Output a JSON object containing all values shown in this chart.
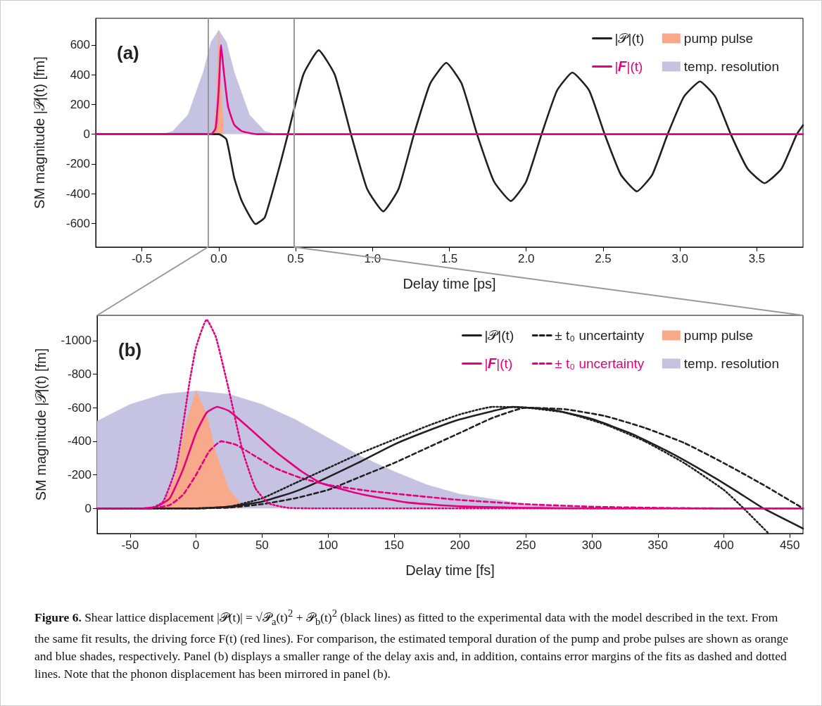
{
  "chart_data": [
    {
      "type": "line",
      "xlabel": "Delay time [ps]",
      "ylabel": "SM magnitude |𝒫|(t) [fm]",
      "xlim": [
        -0.8,
        3.8
      ],
      "ylim": [
        -760,
        780
      ],
      "xticks": [
        -0.5,
        {
          "value": 0,
          "label": "0.0"
        },
        0.5,
        {
          "value": 1,
          "label": "1.0"
        },
        1.5,
        {
          "value": 2,
          "label": "2.0"
        },
        2.5,
        {
          "value": 3,
          "label": "3.0"
        },
        3.5
      ],
      "yticks": [
        -600,
        -400,
        -200,
        0,
        200,
        400,
        600
      ],
      "grid": false,
      "legend": "top right",
      "marker": "none",
      "annotations": [
        "(a)"
      ],
      "ref_lines": [
        {
          "axis": "x",
          "value": -0.07,
          "color": "#999999"
        },
        {
          "axis": "x",
          "value": 0.49,
          "color": "#999999"
        }
      ],
      "series": [
        {
          "name": "|𝒫|(t)",
          "color": "#231f20",
          "line_style": "solid",
          "x": [
            -0.8,
            0,
            0.05,
            0.1,
            0.15,
            0.24,
            0.3,
            0.4,
            0.45,
            0.55,
            0.65,
            0.755,
            0.86,
            0.965,
            1.07,
            1.17,
            1.27,
            1.375,
            1.48,
            1.58,
            1.68,
            1.79,
            1.9,
            2.0,
            2.1,
            2.2,
            2.3,
            2.41,
            2.51,
            2.615,
            2.72,
            2.82,
            2.92,
            3.025,
            3.13,
            3.23,
            3.33,
            3.44,
            3.55,
            3.66,
            3.76,
            3.8
          ],
          "values": [
            0,
            0,
            -35,
            -290,
            -450,
            -605,
            -560,
            -200,
            0,
            400,
            565,
            400,
            0,
            -368,
            -520,
            -368,
            0,
            340,
            480,
            340,
            0,
            -318,
            -450,
            -318,
            0,
            293,
            415,
            293,
            0,
            -272,
            -385,
            -272,
            0,
            251,
            355,
            251,
            0,
            -233,
            -330,
            -233,
            0,
            60
          ]
        },
        {
          "name": "|𝑭|(t)",
          "color": "#e6007e",
          "line_style": "solid",
          "x": [
            -0.8,
            -0.05,
            -0.02,
            0,
            0.015,
            0.03,
            0.06,
            0.1,
            0.15,
            0.25,
            3.8
          ],
          "values": [
            0,
            0,
            40,
            300,
            600,
            450,
            190,
            65,
            20,
            0,
            0
          ]
        },
        {
          "name": "temp. resolution",
          "type": "area",
          "color": "#c5c3e1",
          "x": [
            -0.35,
            -0.3,
            -0.2,
            -0.1,
            -0.05,
            0,
            0.05,
            0.1,
            0.2,
            0.3,
            0.35
          ],
          "values": [
            5,
            20,
            130,
            420,
            620,
            700,
            620,
            420,
            130,
            20,
            5
          ]
        },
        {
          "name": "pump pulse",
          "type": "area",
          "color": "#f7a98a",
          "x": [
            -0.03,
            -0.015,
            0,
            0.015,
            0.03
          ],
          "values": [
            40,
            200,
            700,
            330,
            60
          ]
        }
      ]
    },
    {
      "type": "line",
      "xlabel": "Delay time [fs]",
      "ylabel": "SM magnitude |𝒫|(t) [fm]",
      "xlim": [
        -75,
        460
      ],
      "ylim": [
        150,
        -1150
      ],
      "xticks": [
        -50,
        0,
        50,
        100,
        150,
        200,
        250,
        300,
        350,
        400,
        450
      ],
      "yticks": [
        0,
        -200,
        -400,
        -600,
        -800,
        -1000
      ],
      "grid": false,
      "legend": "top right",
      "marker": "none",
      "annotations": [
        "(b)",
        "Figure 6.",
        "Shear lattice displacement |𝒫(t)| = √𝒫$_{a}$(t)$^{2}$ + 𝒫$_{b}$(t)$^{2}$ (black lines) as fitted to the experimental data with the model described in the text. From the same fit results, the driving force F(t) (red lines). For comparison, the estimated temporal duration of the pump and probe pulses are shown as orange and blue shades, respectively. Panel (b) displays a smaller range of the delay axis and, in addition, contains error margins of the fits as dashed and dotted lines. Note that the phonon displacement has been mirrored in panel (b)."
      ],
      "series": [
        {
          "name": "|𝒫|(t)",
          "color": "#231f20",
          "line_style": "solid",
          "x": [
            -75,
            0,
            25,
            50,
            75,
            93,
            125,
            150,
            175,
            200,
            225,
            240,
            270,
            300,
            330,
            360,
            390,
            410,
            430,
            460
          ],
          "values": [
            0,
            0,
            -10,
            -40,
            -100,
            -160,
            -280,
            -380,
            -460,
            -530,
            -580,
            -605,
            -587,
            -532,
            -445,
            -330,
            -197,
            -100,
            0,
            120
          ]
        },
        {
          "name": "|𝑭|(t)",
          "color": "#e6007e",
          "line_style": "solid",
          "x": [
            -75,
            -40,
            -30,
            -20,
            -10,
            0,
            8,
            16,
            25,
            40,
            60,
            80,
            95,
            125,
            160,
            200,
            250,
            300,
            460
          ],
          "values": [
            0,
            0,
            -10,
            -60,
            -230,
            -450,
            -570,
            -605,
            -580,
            -480,
            -340,
            -220,
            -150,
            -85,
            -35,
            -12,
            -3,
            0,
            0
          ]
        },
        {
          "name": "± t₀ uncertainty",
          "color": "#231f20",
          "line_style": "dashed",
          "x": [
            -75,
            0,
            25,
            50,
            75,
            100,
            125,
            150,
            175,
            200,
            225,
            250,
            280,
            310,
            340,
            370,
            400,
            430,
            460
          ],
          "values": [
            0,
            0,
            -5,
            -25,
            -60,
            -110,
            -190,
            -270,
            -360,
            -450,
            -540,
            -600,
            -590,
            -550,
            -480,
            -390,
            -270,
            -140,
            0
          ]
        },
        {
          "name": "± t₀ uncertainty",
          "color": "#e6007e",
          "line_style": "dashed",
          "x": [
            -75,
            -35,
            -20,
            -10,
            0,
            10,
            19,
            30,
            45,
            60,
            80,
            100,
            130,
            160,
            200,
            250,
            300,
            350,
            400,
            460
          ],
          "values": [
            0,
            0,
            -20,
            -80,
            -200,
            -340,
            -400,
            -380,
            -310,
            -240,
            -180,
            -140,
            -105,
            -80,
            -50,
            -25,
            -10,
            -3,
            0,
            0
          ]
        },
        {
          "color": "#231f20",
          "line_style": "dotted",
          "x": [
            -75,
            0,
            25,
            50,
            75,
            100,
            125,
            150,
            175,
            200,
            225,
            250,
            280,
            310,
            340,
            370,
            400,
            415,
            434
          ],
          "values": [
            0,
            0,
            -10,
            -60,
            -150,
            -240,
            -330,
            -410,
            -490,
            -560,
            -605,
            -600,
            -570,
            -500,
            -400,
            -270,
            -110,
            0,
            150
          ]
        },
        {
          "color": "#e6007e",
          "line_style": "dotted",
          "x": [
            -75,
            -35,
            -25,
            -15,
            -5,
            0,
            8,
            15,
            25,
            35,
            45,
            55,
            70,
            90,
            460
          ],
          "values": [
            0,
            0,
            -40,
            -250,
            -750,
            -960,
            -1125,
            -1020,
            -700,
            -350,
            -120,
            -30,
            -3,
            0,
            0
          ]
        },
        {
          "name": "temp. resolution",
          "type": "area",
          "color": "#c5c3e1",
          "x": [
            -75,
            -50,
            -25,
            0,
            25,
            50,
            75,
            100,
            125,
            150,
            175,
            200,
            250,
            300,
            350
          ],
          "values": [
            -520,
            -620,
            -680,
            -700,
            -680,
            -620,
            -530,
            -420,
            -310,
            -220,
            -140,
            -85,
            -25,
            -5,
            -1
          ]
        },
        {
          "name": "pump pulse",
          "type": "area",
          "color": "#f7a98a",
          "x": [
            -25,
            -15,
            -8,
            0,
            8,
            15,
            25,
            35
          ],
          "values": [
            -20,
            -200,
            -500,
            -700,
            -560,
            -330,
            -110,
            -20
          ]
        }
      ]
    }
  ]
}
